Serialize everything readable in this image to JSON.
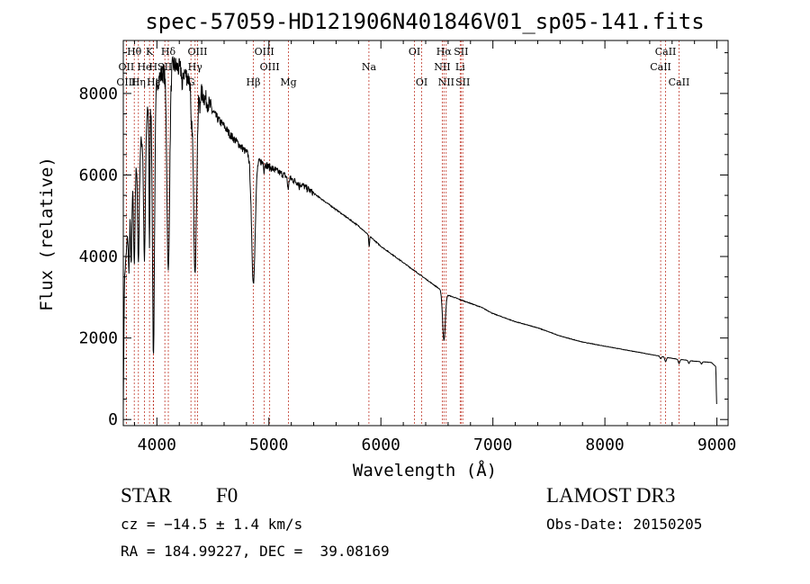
{
  "chart_data": {
    "type": "line",
    "title": "spec-57059-HD121906N401846V01_sp05-141.fits",
    "xlabel": "Wavelength (Å)",
    "ylabel": "Flux (relative)",
    "xlim": [
      3700,
      9100
    ],
    "ylim": [
      -150,
      9300
    ],
    "xticks": [
      4000,
      5000,
      6000,
      7000,
      8000,
      9000
    ],
    "yticks": [
      0,
      2000,
      4000,
      6000,
      8000
    ],
    "line_color": "#000000",
    "marker_color": "#c0392b",
    "continuum": [
      [
        3700,
        300
      ],
      [
        3710,
        3400
      ],
      [
        3740,
        4600
      ],
      [
        3780,
        5600
      ],
      [
        3820,
        6200
      ],
      [
        3860,
        6800
      ],
      [
        3900,
        7300
      ],
      [
        3950,
        7900
      ],
      [
        4000,
        8300
      ],
      [
        4050,
        8500
      ],
      [
        4100,
        8600
      ],
      [
        4150,
        8700
      ],
      [
        4200,
        8600
      ],
      [
        4250,
        8500
      ],
      [
        4300,
        8300
      ],
      [
        4350,
        8150
      ],
      [
        4400,
        8000
      ],
      [
        4450,
        7800
      ],
      [
        4500,
        7550
      ],
      [
        4550,
        7350
      ],
      [
        4600,
        7200
      ],
      [
        4650,
        7000
      ],
      [
        4700,
        6850
      ],
      [
        4750,
        6700
      ],
      [
        4800,
        6550
      ],
      [
        4850,
        6450
      ],
      [
        4900,
        6350
      ],
      [
        4950,
        6300
      ],
      [
        5000,
        6200
      ],
      [
        5100,
        6050
      ],
      [
        5200,
        5900
      ],
      [
        5300,
        5750
      ],
      [
        5400,
        5550
      ],
      [
        5500,
        5350
      ],
      [
        5600,
        5150
      ],
      [
        5700,
        4950
      ],
      [
        5800,
        4750
      ],
      [
        5900,
        4500
      ],
      [
        6000,
        4250
      ],
      [
        6100,
        4050
      ],
      [
        6200,
        3850
      ],
      [
        6300,
        3650
      ],
      [
        6400,
        3450
      ],
      [
        6500,
        3250
      ],
      [
        6600,
        3050
      ],
      [
        6700,
        2950
      ],
      [
        6800,
        2850
      ],
      [
        6900,
        2750
      ],
      [
        7000,
        2600
      ],
      [
        7200,
        2400
      ],
      [
        7400,
        2250
      ],
      [
        7600,
        2050
      ],
      [
        7800,
        1900
      ],
      [
        8000,
        1800
      ],
      [
        8200,
        1700
      ],
      [
        8400,
        1600
      ],
      [
        8600,
        1500
      ],
      [
        8800,
        1430
      ],
      [
        8950,
        1400
      ],
      [
        8990,
        1300
      ],
      [
        9000,
        150
      ]
    ],
    "absorption": [
      [
        3750,
        0.75,
        5
      ],
      [
        3771,
        0.7,
        5
      ],
      [
        3798,
        0.65,
        6
      ],
      [
        3835,
        0.6,
        7
      ],
      [
        3889,
        0.55,
        8
      ],
      [
        3933.7,
        0.55,
        4
      ],
      [
        3968.5,
        0.55,
        5
      ],
      [
        3970,
        0.35,
        10
      ],
      [
        4101.7,
        0.42,
        12
      ],
      [
        4227,
        0.93,
        3
      ],
      [
        4307,
        0.88,
        5
      ],
      [
        4340.5,
        0.45,
        14
      ],
      [
        4383,
        0.94,
        3
      ],
      [
        4861.3,
        0.52,
        16
      ],
      [
        4957,
        0.97,
        3
      ],
      [
        5167,
        0.97,
        4
      ],
      [
        5175,
        0.96,
        4
      ],
      [
        5270,
        0.98,
        3
      ],
      [
        5895,
        0.94,
        4
      ],
      [
        6563,
        0.62,
        12
      ],
      [
        8498,
        0.96,
        6
      ],
      [
        8542,
        0.93,
        7
      ],
      [
        8662,
        0.93,
        7
      ],
      [
        8750,
        0.95,
        6
      ],
      [
        8863,
        0.96,
        6
      ]
    ],
    "line_markers": [
      {
        "label": "Hθ",
        "wavelength": 3798,
        "row": 0
      },
      {
        "label": "K",
        "wavelength": 3934,
        "row": 0
      },
      {
        "label": "Hδ",
        "wavelength": 4102,
        "row": 0
      },
      {
        "label": "OIII",
        "wavelength": 4363,
        "row": 0
      },
      {
        "label": "OIII",
        "wavelength": 4959,
        "row": 0
      },
      {
        "label": "OI",
        "wavelength": 6300,
        "row": 0
      },
      {
        "label": "Hα",
        "wavelength": 6563,
        "row": 0
      },
      {
        "label": "SII",
        "wavelength": 6716,
        "row": 0
      },
      {
        "label": "CaII",
        "wavelength": 8542,
        "row": 0
      },
      {
        "label": "OII",
        "wavelength": 3727,
        "row": 1
      },
      {
        "label": "He",
        "wavelength": 3889,
        "row": 1
      },
      {
        "label": "H",
        "wavelength": 3968,
        "row": 1
      },
      {
        "label": "SII",
        "wavelength": 4071,
        "row": 1
      },
      {
        "label": "Hγ",
        "wavelength": 4341,
        "row": 1
      },
      {
        "label": "OIII",
        "wavelength": 5007,
        "row": 1
      },
      {
        "label": "Na",
        "wavelength": 5893,
        "row": 1
      },
      {
        "label": "NII",
        "wavelength": 6548,
        "row": 1
      },
      {
        "label": "Li",
        "wavelength": 6708,
        "row": 1
      },
      {
        "label": "CaII",
        "wavelength": 8498,
        "row": 1
      },
      {
        "label": "OIII",
        "wavelength": 3727,
        "row": 2
      },
      {
        "label": "Hη",
        "wavelength": 3835,
        "row": 2
      },
      {
        "label": "Hε",
        "wavelength": 3970,
        "row": 2
      },
      {
        "label": "G",
        "wavelength": 4304,
        "row": 2
      },
      {
        "label": "Hβ",
        "wavelength": 4861,
        "row": 2
      },
      {
        "label": "Mg",
        "wavelength": 5175,
        "row": 2
      },
      {
        "label": "OI",
        "wavelength": 6364,
        "row": 2
      },
      {
        "label": "NII",
        "wavelength": 6583,
        "row": 2
      },
      {
        "label": "SII",
        "wavelength": 6731,
        "row": 2
      },
      {
        "label": "CaII",
        "wavelength": 8662,
        "row": 2
      }
    ]
  },
  "info": {
    "object_class": "STAR",
    "subclass": "F0",
    "survey": "LAMOST DR3",
    "redshift": "cz = −14.5 ± 1.4 km/s",
    "obs_date": "Obs-Date: 20150205",
    "coords": "RA = 184.99227, DEC =  39.08169"
  }
}
